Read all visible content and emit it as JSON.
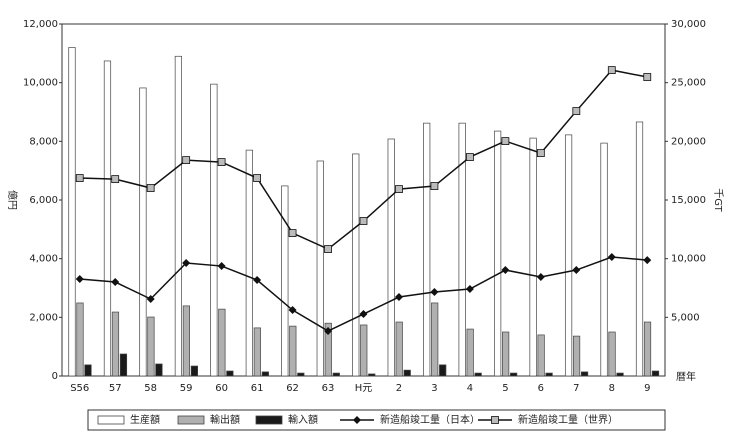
{
  "chart_data": {
    "type": "bar_line",
    "y_label": "億円",
    "y2_label": "千GT",
    "x_label": "暦年",
    "categories": [
      "S56",
      "57",
      "58",
      "59",
      "60",
      "61",
      "62",
      "63",
      "H元",
      "2",
      "3",
      "4",
      "5",
      "6",
      "7",
      "8",
      "9"
    ],
    "ylim": [
      0,
      12000
    ],
    "yticks": [
      {
        "value": 0,
        "label": "0"
      },
      {
        "value": 2000,
        "label": "2,000"
      },
      {
        "value": 4000,
        "label": "4,000"
      },
      {
        "value": 6000,
        "label": "6,000"
      },
      {
        "value": 8000,
        "label": "8,000"
      },
      {
        "value": 10000,
        "label": "10,000"
      },
      {
        "value": 12000,
        "label": "12,000"
      }
    ],
    "y2lim": [
      0,
      30000
    ],
    "y2ticks": [
      {
        "value": 5000,
        "label": "5,000"
      },
      {
        "value": 10000,
        "label": "10,000"
      },
      {
        "value": 15000,
        "label": "15,000"
      },
      {
        "value": 20000,
        "label": "20,000"
      },
      {
        "value": 25000,
        "label": "25,000"
      },
      {
        "value": 30000,
        "label": "30,000"
      }
    ],
    "series": [
      {
        "name": "生産額",
        "kind": "bar",
        "color": "#ffffff",
        "values": [
          11200,
          10740,
          9820,
          10900,
          9950,
          7700,
          6480,
          7330,
          7570,
          8080,
          8620,
          8620,
          8350,
          8110,
          8220,
          7940,
          8660
        ]
      },
      {
        "name": "輸出額",
        "kind": "bar",
        "color": "#b0b0b0",
        "values": [
          2490,
          2180,
          2010,
          2390,
          2280,
          1640,
          1700,
          1800,
          1740,
          1840,
          2490,
          1600,
          1500,
          1400,
          1360,
          1500,
          1840
        ]
      },
      {
        "name": "輸入額",
        "kind": "bar",
        "color": "#1a1a1a",
        "values": [
          380,
          750,
          410,
          340,
          170,
          140,
          100,
          100,
          70,
          200,
          380,
          100,
          100,
          100,
          140,
          100,
          170
        ]
      },
      {
        "name": "新造船竣工量（日本）",
        "kind": "line",
        "marker": "diamond",
        "axis": "y2",
        "color": "#111111",
        "values": [
          8270,
          8010,
          6560,
          9630,
          9370,
          8180,
          5620,
          3830,
          5280,
          6730,
          7160,
          7410,
          9030,
          8440,
          9030,
          10140,
          9880
        ]
      },
      {
        "name": "新造船竣工量（世界）",
        "kind": "line",
        "marker": "square",
        "axis": "y2",
        "color": "#111111",
        "values": [
          16870,
          16780,
          16020,
          18400,
          18230,
          16870,
          12180,
          10820,
          13210,
          15930,
          16190,
          18660,
          20020,
          19000,
          22580,
          26070,
          25480
        ]
      }
    ]
  }
}
